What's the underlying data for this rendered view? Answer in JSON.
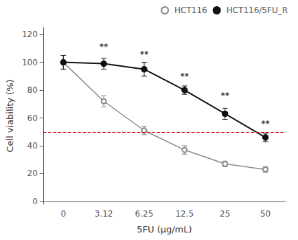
{
  "chart_data": {
    "type": "line",
    "categories": [
      "0",
      "3.12",
      "6.25",
      "12.5",
      "25",
      "50"
    ],
    "xlabel": "5FU (μg/mL)",
    "ylabel": "Cell viability (%)",
    "ylim": [
      -2,
      125
    ],
    "yticks": [
      0,
      20,
      40,
      60,
      80,
      100,
      120
    ],
    "grid": false,
    "legend": "upper right",
    "series": [
      {
        "name": "HCT116",
        "color": "#888888",
        "marker": "open_circle",
        "line_style": "solid",
        "values": [
          100,
          72,
          51,
          37,
          27,
          23
        ],
        "errors": [
          5,
          4,
          3,
          3,
          2,
          2
        ]
      },
      {
        "name": "HCT116/5FU_R",
        "color": "#111111",
        "marker": "circle",
        "line_style": "solid",
        "values": [
          100,
          99,
          95,
          80,
          63,
          46
        ],
        "errors": [
          5,
          4,
          5,
          3,
          4,
          3
        ]
      }
    ],
    "reference_line": {
      "y": 50,
      "color": "#cc0000",
      "line_style": "dashed"
    },
    "annotations": [
      {
        "x": "3.12",
        "y": 108,
        "text": "**"
      },
      {
        "x": "6.25",
        "y": 103,
        "text": "**"
      },
      {
        "x": "12.5",
        "y": 87,
        "text": "**"
      },
      {
        "x": "25",
        "y": 73,
        "text": "**"
      },
      {
        "x": "50",
        "y": 53,
        "text": "**"
      }
    ]
  }
}
